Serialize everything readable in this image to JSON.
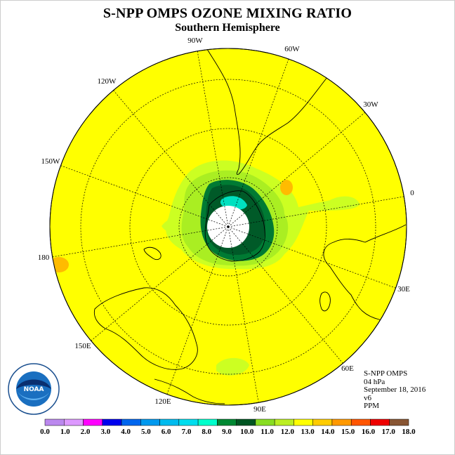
{
  "header": {
    "title": "S-NPP OMPS OZONE MIXING RATIO",
    "subtitle": "Southern Hemisphere"
  },
  "map": {
    "projection": "south polar stereographic",
    "background_color": "#ffff00",
    "longitude_labels": {
      "lon_90w": "90W",
      "lon_60w": "60W",
      "lon_30w": "30W",
      "lon_0": "0",
      "lon_30e": "30E",
      "lon_60e": "60E",
      "lon_90e": "90E",
      "lon_120e": "120E",
      "lon_150e": "150E",
      "lon_180": "180",
      "lon_150w": "150W",
      "lon_120w": "120W"
    },
    "colors": {
      "no_data": "#ffffff",
      "dark_green": "#007a33",
      "darkest_green": "#005a28",
      "teal": "#00e0c0",
      "light_green": "#aaee22",
      "yellow_green": "#ccff22",
      "orange": "#ffbb00"
    }
  },
  "info": {
    "line1": "S-NPP OMPS",
    "line2": "04 hPa",
    "line3": "September 18, 2016",
    "line4": "v6",
    "line5": "PPM"
  },
  "colorbar": {
    "unit": "PPM",
    "ticks": [
      "0.0",
      "1.0",
      "2.0",
      "3.0",
      "4.0",
      "5.0",
      "6.0",
      "7.0",
      "8.0",
      "9.0",
      "10.0",
      "11.0",
      "12.0",
      "13.0",
      "14.0",
      "15.0",
      "16.0",
      "17.0",
      "18.0"
    ],
    "colors": [
      "#bb88ee",
      "#dd99ff",
      "#ff00ff",
      "#0000ee",
      "#0066ee",
      "#0099ee",
      "#00bbee",
      "#00ddee",
      "#00ffcc",
      "#008833",
      "#005522",
      "#88dd22",
      "#bbee22",
      "#ffff00",
      "#ffcc00",
      "#ff9900",
      "#ff5500",
      "#ee0000",
      "#885533"
    ]
  },
  "logo": {
    "name": "NOAA",
    "ring_text": "NATIONAL OCEANIC AND ATMOSPHERIC ADMINISTRATION · U.S. DEPARTMENT OF COMMERCE"
  }
}
